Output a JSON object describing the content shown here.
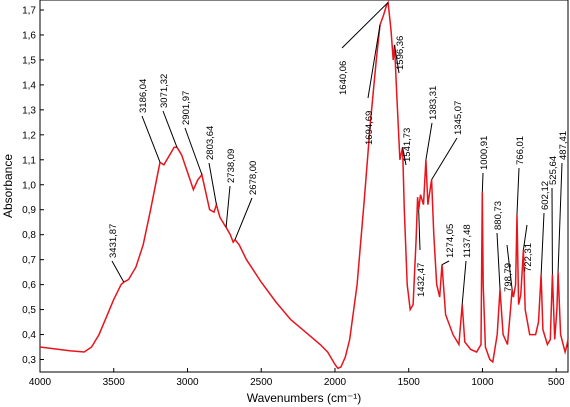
{
  "chart_data": {
    "type": "line",
    "xlabel": "Wavenumbers (cm⁻¹)",
    "ylabel": "Absorbance",
    "xlim": [
      4000,
      420
    ],
    "ylim": [
      0.25,
      1.74
    ],
    "xticks": [
      4000,
      3500,
      3000,
      2500,
      2000,
      1500,
      1000,
      500
    ],
    "yticks": [
      {
        "value": 0.3,
        "label": "0,3"
      },
      {
        "value": 0.4,
        "label": "0,4"
      },
      {
        "value": 0.5,
        "label": "0,5"
      },
      {
        "value": 0.6,
        "label": "0,6"
      },
      {
        "value": 0.7,
        "label": "0,7"
      },
      {
        "value": 0.8,
        "label": "0,8"
      },
      {
        "value": 0.9,
        "label": "0,9"
      },
      {
        "value": 1.0,
        "label": "1,0"
      },
      {
        "value": 1.1,
        "label": "1,1"
      },
      {
        "value": 1.2,
        "label": "1,2"
      },
      {
        "value": 1.3,
        "label": "1,3"
      },
      {
        "value": 1.4,
        "label": "1,4"
      },
      {
        "value": 1.5,
        "label": "1,5"
      },
      {
        "value": 1.6,
        "label": "1,6"
      },
      {
        "value": 1.7,
        "label": "1,7"
      }
    ],
    "x": [
      4000,
      3800,
      3700,
      3650,
      3600,
      3550,
      3500,
      3450,
      3431.87,
      3400,
      3350,
      3300,
      3250,
      3200,
      3186.04,
      3160,
      3120,
      3090,
      3071.32,
      3040,
      3000,
      2960,
      2930,
      2901.97,
      2880,
      2850,
      2820,
      2803.64,
      2780,
      2750,
      2738.09,
      2710,
      2690,
      2678,
      2650,
      2600,
      2500,
      2400,
      2300,
      2200,
      2100,
      2050,
      2000,
      1980,
      1960,
      1930,
      1900,
      1850,
      1800,
      1760,
      1720,
      1694.69,
      1670,
      1650,
      1640.06,
      1620,
      1605,
      1596.36,
      1580,
      1560,
      1541.73,
      1530,
      1510,
      1490,
      1470,
      1450,
      1440,
      1432.47,
      1420,
      1400,
      1383.31,
      1370,
      1350,
      1345.07,
      1330,
      1310,
      1290,
      1274.05,
      1250,
      1200,
      1160,
      1137.48,
      1120,
      1080,
      1040,
      1010,
      1000.91,
      995,
      980,
      950,
      930,
      900,
      880.73,
      860,
      830,
      810,
      798.79,
      790,
      775,
      766.01,
      755,
      740,
      722.31,
      710,
      680,
      640,
      620,
      602.12,
      590,
      560,
      540,
      525.64,
      510,
      495,
      487.41,
      470,
      440,
      430,
      420
    ],
    "series": [
      {
        "name": "Absorbance",
        "color": "#e8141c",
        "values": [
          0.35,
          0.335,
          0.33,
          0.35,
          0.4,
          0.47,
          0.54,
          0.6,
          0.61,
          0.62,
          0.67,
          0.76,
          0.9,
          1.05,
          1.09,
          1.08,
          1.12,
          1.15,
          1.15,
          1.12,
          1.05,
          0.98,
          1.02,
          1.04,
          0.98,
          0.9,
          0.89,
          0.92,
          0.87,
          0.84,
          0.83,
          0.8,
          0.77,
          0.78,
          0.76,
          0.7,
          0.61,
          0.53,
          0.46,
          0.41,
          0.36,
          0.33,
          0.28,
          0.265,
          0.27,
          0.31,
          0.38,
          0.6,
          0.95,
          1.25,
          1.5,
          1.64,
          1.68,
          1.72,
          1.73,
          1.62,
          1.5,
          1.56,
          1.35,
          1.1,
          1.15,
          0.9,
          0.6,
          0.5,
          0.52,
          0.78,
          0.95,
          0.9,
          0.96,
          0.92,
          1.1,
          0.92,
          1.0,
          1.02,
          0.8,
          0.6,
          0.55,
          0.68,
          0.48,
          0.4,
          0.36,
          0.52,
          0.37,
          0.34,
          0.33,
          0.36,
          0.97,
          0.6,
          0.35,
          0.3,
          0.29,
          0.4,
          0.58,
          0.4,
          0.36,
          0.5,
          0.58,
          0.55,
          0.6,
          0.88,
          0.52,
          0.56,
          0.74,
          0.5,
          0.4,
          0.4,
          0.45,
          0.64,
          0.42,
          0.36,
          0.38,
          0.64,
          0.38,
          0.5,
          0.65,
          0.4,
          0.33,
          0.35,
          0.38
        ]
      }
    ],
    "annotations": [
      {
        "x": 3431.87,
        "label": "3431,87"
      },
      {
        "x": 3186.04,
        "label": "3186,04"
      },
      {
        "x": 3071.32,
        "label": "3071,32"
      },
      {
        "x": 2901.97,
        "label": "2901,97"
      },
      {
        "x": 2803.64,
        "label": "2803,64"
      },
      {
        "x": 2738.09,
        "label": "2738,09"
      },
      {
        "x": 2678,
        "label": "2678,00"
      },
      {
        "x": 1640.06,
        "label": "1640,06"
      },
      {
        "x": 1694.69,
        "label": "1694,69"
      },
      {
        "x": 1596.36,
        "label": "1596,36"
      },
      {
        "x": 1541.73,
        "label": "1541,73"
      },
      {
        "x": 1383.31,
        "label": "1383,31"
      },
      {
        "x": 1345.07,
        "label": "1345,07"
      },
      {
        "x": 1432.47,
        "label": "1432,47"
      },
      {
        "x": 1274.05,
        "label": "1274,05"
      },
      {
        "x": 1137.48,
        "label": "1137,48"
      },
      {
        "x": 1000.91,
        "label": "1000,91"
      },
      {
        "x": 880.73,
        "label": "880,73"
      },
      {
        "x": 798.79,
        "label": "798,79"
      },
      {
        "x": 766.01,
        "label": "766,01"
      },
      {
        "x": 722.31,
        "label": "722,31"
      },
      {
        "x": 602.12,
        "label": "602,12"
      },
      {
        "x": 525.64,
        "label": "525,64"
      },
      {
        "x": 487.41,
        "label": "487,41"
      }
    ]
  }
}
